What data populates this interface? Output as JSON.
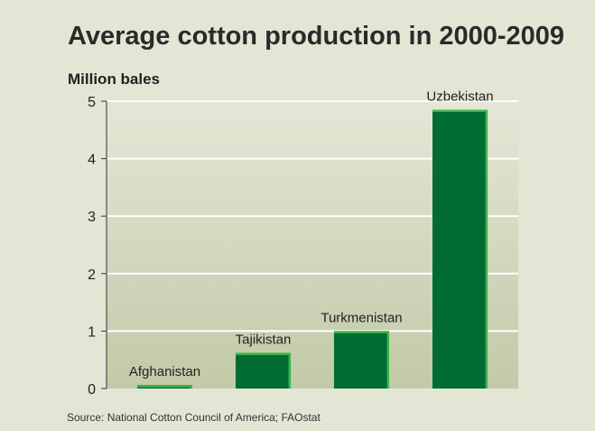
{
  "chart_data": {
    "type": "bar",
    "title": "Average cotton production in 2000-2009",
    "ylabel": "Million bales",
    "xlabel": "",
    "categories": [
      "Afghanistan",
      "Tajikistan",
      "Turkmenistan",
      "Uzbekistan"
    ],
    "values": [
      0.06,
      0.62,
      1.0,
      4.85
    ],
    "ylim": [
      0,
      5
    ],
    "yticks": [
      "0",
      "1",
      "2",
      "3",
      "4",
      "5"
    ],
    "grid": true,
    "bar_color": "#006b33",
    "bar_highlight_color": "#39b54a",
    "plot_background": "#c7cfb0",
    "source": "Source: National Cotton Council of America; FAOstat"
  }
}
